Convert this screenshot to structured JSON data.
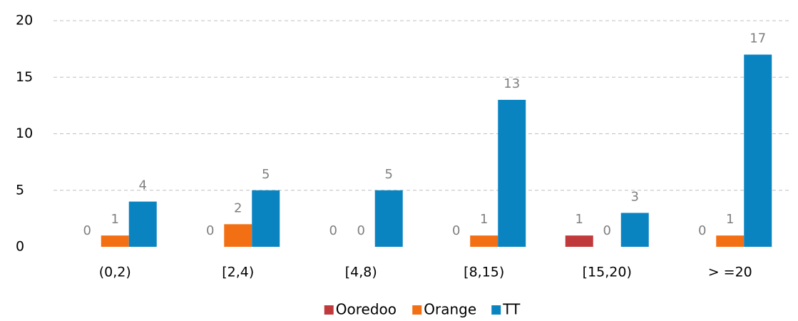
{
  "chart_data": {
    "type": "bar",
    "categories": [
      "(0,2)",
      "[2,4)",
      "[4,8)",
      "[8,15)",
      "[15,20)",
      "> =20"
    ],
    "series": [
      {
        "name": "Ooredoo",
        "color": "#c0393b",
        "values": [
          0,
          0,
          0,
          0,
          1,
          0
        ]
      },
      {
        "name": "Orange",
        "color": "#f36f13",
        "values": [
          1,
          2,
          0,
          1,
          0,
          1
        ]
      },
      {
        "name": "TT",
        "color": "#0a84c1",
        "values": [
          4,
          5,
          5,
          13,
          3,
          17
        ]
      }
    ],
    "ylim": [
      0,
      20
    ],
    "yticks": [
      0,
      5,
      10,
      15,
      20
    ],
    "grid": true,
    "legend": "bottom"
  }
}
